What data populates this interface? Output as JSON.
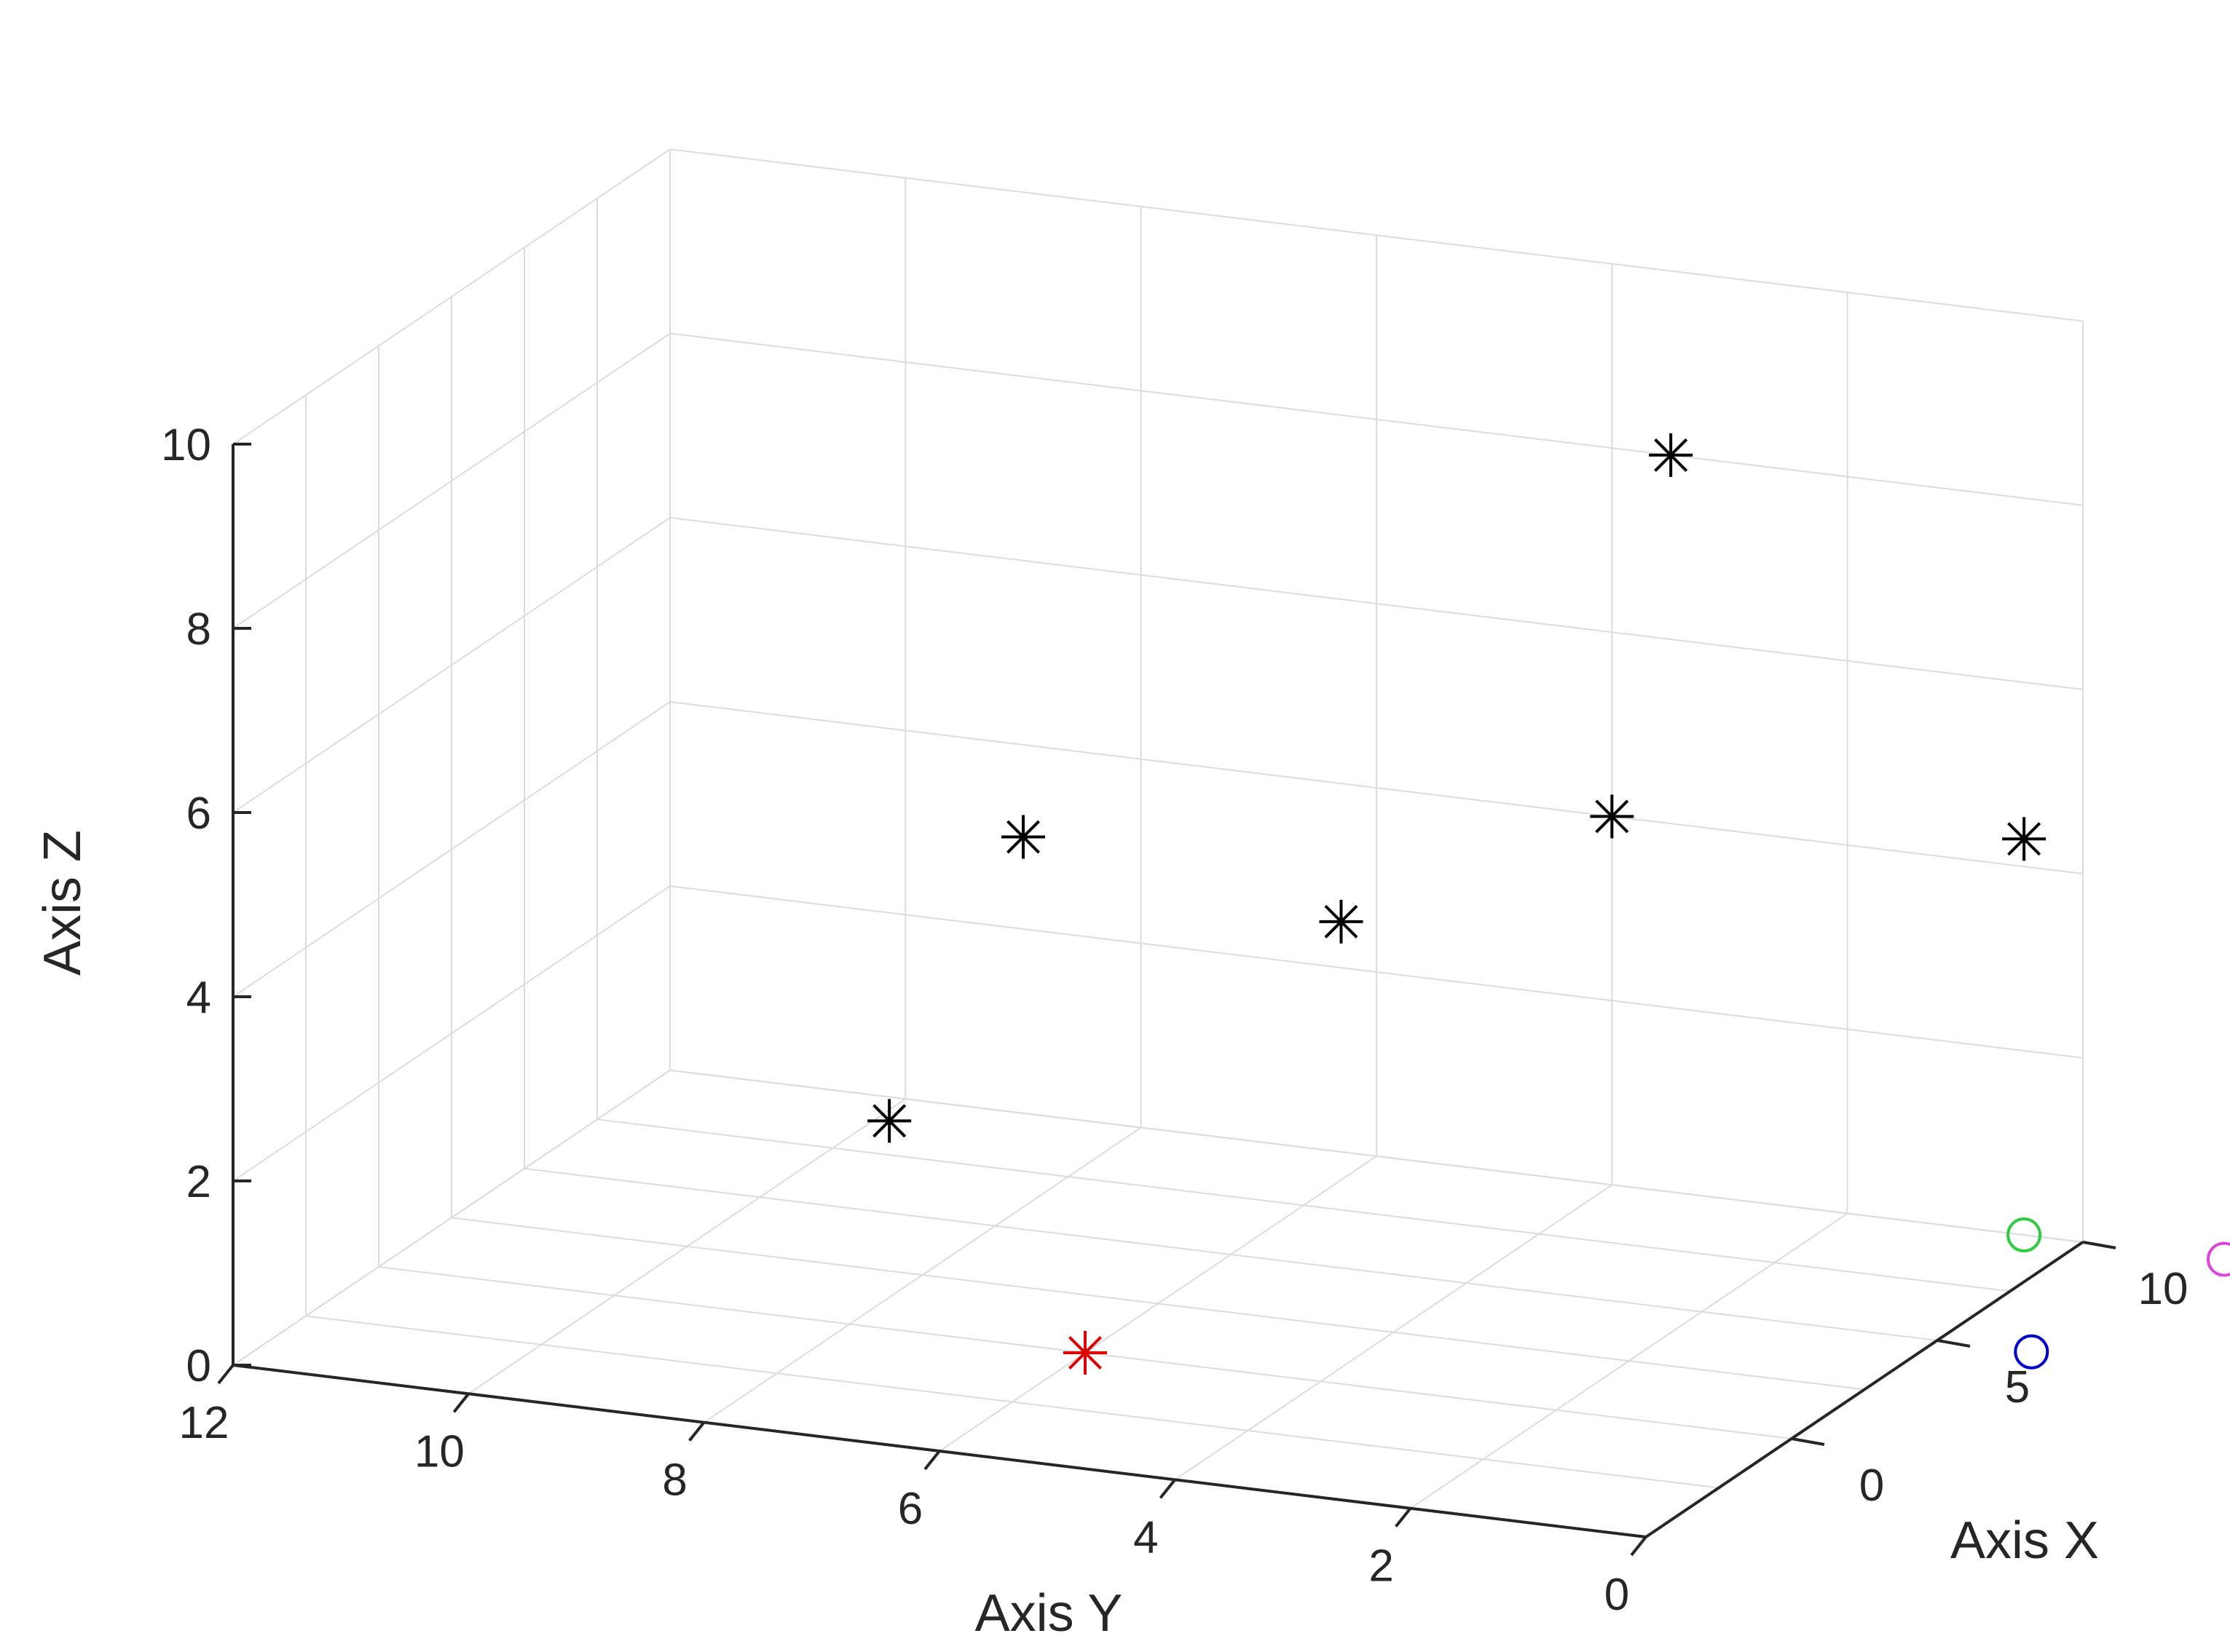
{
  "chart_data": {
    "type": "scatter3d",
    "title": "",
    "xlabel": "Axis X",
    "ylabel": "Axis Y",
    "zlabel": "Axis Z",
    "xlim": [
      -5,
      10
    ],
    "ylim": [
      0,
      12
    ],
    "zlim": [
      0,
      10
    ],
    "x_ticks": [
      "0",
      "5",
      "10"
    ],
    "y_ticks": [
      "0",
      "2",
      "4",
      "6",
      "8",
      "10",
      "12"
    ],
    "z_ticks": [
      "0",
      "2",
      "4",
      "6",
      "8",
      "10"
    ],
    "grid": true,
    "series": [
      {
        "marker": "asterisk",
        "color": "#000000",
        "points": [
          {
            "x": 10,
            "y": 9,
            "z": 3
          },
          {
            "x": 5,
            "y": 8.9,
            "z": 1
          },
          {
            "x": 10,
            "y": 6.3,
            "z": 2.5
          },
          {
            "x": 10,
            "y": 3.5,
            "z": 8
          },
          {
            "x": 10,
            "y": 4,
            "z": 4
          },
          {
            "x": 10,
            "y": 0.5,
            "z": 4.3
          }
        ]
      },
      {
        "marker": "asterisk",
        "color": "#e00000",
        "points": [
          {
            "x": 0,
            "y": 6,
            "z": 0
          }
        ]
      },
      {
        "marker": "circle",
        "color": "#2ecc40",
        "points": [
          {
            "x": 10,
            "y": 0.5,
            "z": 0
          }
        ]
      },
      {
        "marker": "circle",
        "color": "#dd44dd",
        "points": [
          {
            "x": 10,
            "y": -1.2,
            "z": 0
          }
        ]
      },
      {
        "marker": "circle",
        "color": "#0000cc",
        "points": [
          {
            "x": 5,
            "y": -0.8,
            "z": 0
          }
        ]
      }
    ]
  }
}
